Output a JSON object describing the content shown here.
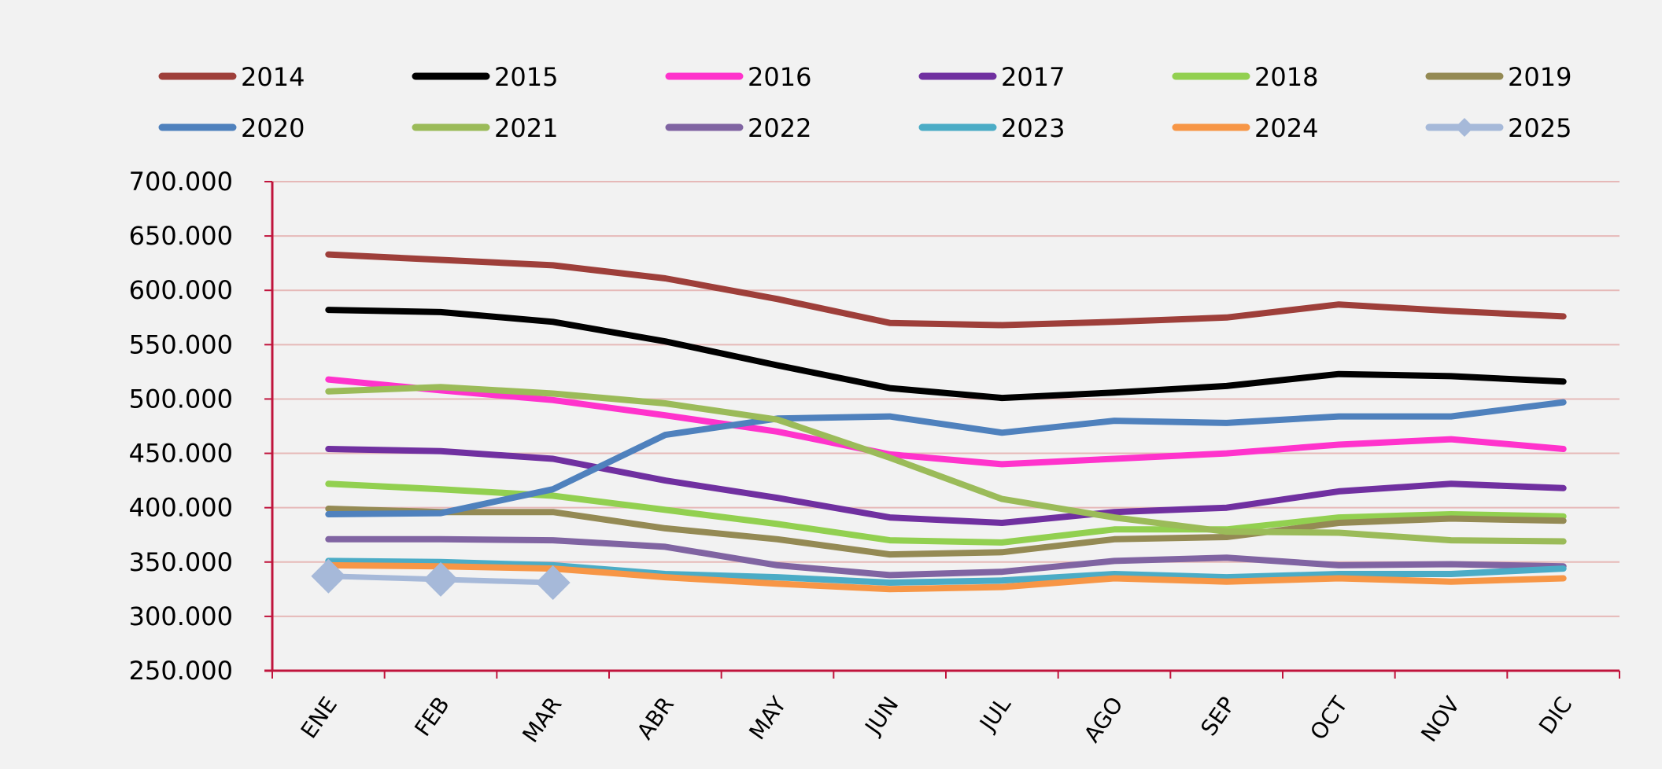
{
  "chart_data": {
    "type": "line",
    "title": "",
    "xlabel": "",
    "ylabel": "",
    "categories": [
      "ENE",
      "FEB",
      "MAR",
      "ABR",
      "MAY",
      "JUN",
      "JUL",
      "AGO",
      "SEP",
      "OCT",
      "NOV",
      "DIC"
    ],
    "ylim": [
      250000,
      700000
    ],
    "yticks": [
      700000,
      650000,
      600000,
      550000,
      500000,
      450000,
      400000,
      350000,
      300000,
      250000
    ],
    "ytick_labels": [
      "700.000",
      "650.000",
      "600.000",
      "550.000",
      "500.000",
      "450.000",
      "400.000",
      "350.000",
      "300.000",
      "250.000"
    ],
    "grid": "horizontal",
    "legend_position": "top",
    "series": [
      {
        "name": "2014",
        "color": "#9e3f3a",
        "values": [
          633000,
          628000,
          623000,
          611000,
          592000,
          570000,
          568000,
          571000,
          575000,
          587000,
          581000,
          576000
        ]
      },
      {
        "name": "2015",
        "color": "#000000",
        "values": [
          582000,
          580000,
          571000,
          553000,
          531000,
          510000,
          501000,
          506000,
          512000,
          523000,
          521000,
          516000
        ]
      },
      {
        "name": "2016",
        "color": "#ff33cc",
        "values": [
          518000,
          508000,
          499000,
          485000,
          470000,
          449000,
          440000,
          445000,
          450000,
          458000,
          463000,
          454000
        ]
      },
      {
        "name": "2017",
        "color": "#7030a0",
        "values": [
          454000,
          452000,
          445000,
          425000,
          409000,
          391000,
          386000,
          396000,
          400000,
          415000,
          422000,
          418000
        ]
      },
      {
        "name": "2018",
        "color": "#92d050",
        "values": [
          422000,
          417000,
          411000,
          398000,
          385000,
          370000,
          368000,
          380000,
          380000,
          391000,
          394000,
          392000
        ]
      },
      {
        "name": "2019",
        "color": "#948a54",
        "values": [
          399000,
          396000,
          396000,
          381000,
          371000,
          357000,
          359000,
          371000,
          373000,
          386000,
          390000,
          388000
        ]
      },
      {
        "name": "2020",
        "color": "#4f81bd",
        "values": [
          394000,
          395000,
          417000,
          467000,
          482000,
          484000,
          469000,
          480000,
          478000,
          484000,
          484000,
          497000
        ]
      },
      {
        "name": "2021",
        "color": "#9bbb59",
        "values": [
          507000,
          511000,
          505000,
          496000,
          481000,
          446000,
          408000,
          391000,
          378000,
          377000,
          370000,
          369000
        ]
      },
      {
        "name": "2022",
        "color": "#8064a2",
        "values": [
          371000,
          371000,
          370000,
          364000,
          347000,
          338000,
          341000,
          351000,
          354000,
          347000,
          348000,
          346000
        ]
      },
      {
        "name": "2023",
        "color": "#4bacc6",
        "values": [
          351000,
          350000,
          347000,
          339000,
          336000,
          331000,
          333000,
          339000,
          336000,
          339000,
          339000,
          344000
        ]
      },
      {
        "name": "2024",
        "color": "#f79646",
        "values": [
          347000,
          346000,
          344000,
          336000,
          330000,
          325000,
          327000,
          335000,
          332000,
          335000,
          332000,
          335000
        ]
      },
      {
        "name": "2025",
        "color": "#a6b9d9",
        "marker": "diamond",
        "values": [
          337000,
          334000,
          331000,
          null,
          null,
          null,
          null,
          null,
          null,
          null,
          null,
          null
        ]
      }
    ]
  }
}
